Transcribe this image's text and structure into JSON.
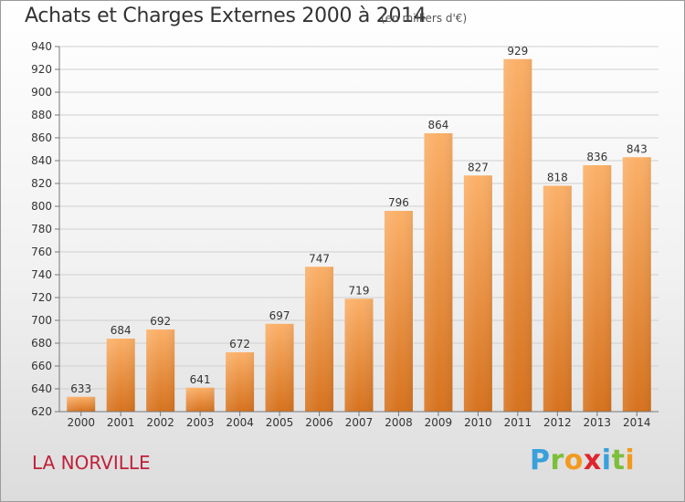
{
  "header": {
    "title": "Achats et Charges Externes 2000 à 2014",
    "unit": "(en milliers d'€)"
  },
  "footer": {
    "commune": "LA NORVILLE",
    "logo": "Proxiti"
  },
  "colors": {
    "bar_light": "#f9a85a",
    "bar_dark": "#d9741f",
    "grid": "#cfcfcf",
    "commune_text": "#c0203a"
  },
  "chart_data": {
    "type": "bar",
    "title": "Achats et Charges Externes 2000 à 2014",
    "subtitle": "(en milliers d'€)",
    "xlabel": "",
    "ylabel": "",
    "categories": [
      "2000",
      "2001",
      "2002",
      "2003",
      "2004",
      "2005",
      "2006",
      "2007",
      "2008",
      "2009",
      "2010",
      "2011",
      "2012",
      "2013",
      "2014"
    ],
    "values": [
      633,
      684,
      692,
      641,
      672,
      697,
      747,
      719,
      796,
      864,
      827,
      929,
      818,
      836,
      843
    ],
    "ylim": [
      620,
      940
    ],
    "yticks": [
      620,
      640,
      660,
      680,
      700,
      720,
      740,
      760,
      780,
      800,
      820,
      840,
      860,
      880,
      900,
      920,
      940
    ],
    "grid": true,
    "data_labels": true
  }
}
